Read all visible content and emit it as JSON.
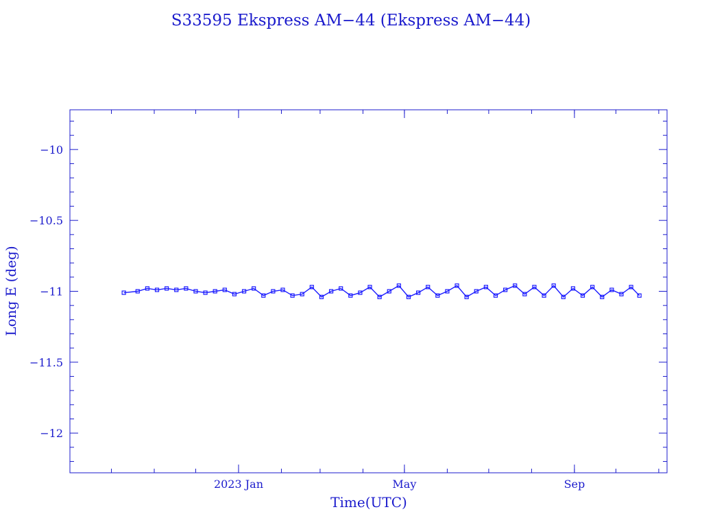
{
  "chart_data": {
    "type": "line",
    "title": "S33595 Ekspress AM−44  (Ekspress AM−44)",
    "xlabel": "Time(UTC)",
    "ylabel": "Long E (deg)",
    "xlim": [
      "2022-09-01",
      "2023-11-07"
    ],
    "ylim": [
      -12.28,
      -9.72
    ],
    "x_ticks": [
      {
        "date": "2023-01-01",
        "label": "2023 Jan"
      },
      {
        "date": "2023-05-01",
        "label": "May"
      },
      {
        "date": "2023-09-01",
        "label": "Sep"
      }
    ],
    "y_ticks": [
      {
        "value": -10,
        "label": "−10"
      },
      {
        "value": -10.5,
        "label": "−10.5"
      },
      {
        "value": -11,
        "label": "−11"
      },
      {
        "value": -11.5,
        "label": "−11.5"
      },
      {
        "value": -12,
        "label": "−12"
      }
    ],
    "grid": false,
    "series": [
      {
        "color": "#1a1aff",
        "marker": "small-square",
        "x": [
          "2022-10-10",
          "2022-10-20",
          "2022-10-27",
          "2022-11-03",
          "2022-11-10",
          "2022-11-17",
          "2022-11-24",
          "2022-12-01",
          "2022-12-08",
          "2022-12-15",
          "2022-12-22",
          "2022-12-29",
          "2023-01-05",
          "2023-01-12",
          "2023-01-19",
          "2023-01-26",
          "2023-02-02",
          "2023-02-09",
          "2023-02-16",
          "2023-02-23",
          "2023-03-02",
          "2023-03-09",
          "2023-03-16",
          "2023-03-23",
          "2023-03-30",
          "2023-04-06",
          "2023-04-13",
          "2023-04-20",
          "2023-04-27",
          "2023-05-04",
          "2023-05-11",
          "2023-05-18",
          "2023-05-25",
          "2023-06-01",
          "2023-06-08",
          "2023-06-15",
          "2023-06-22",
          "2023-06-29",
          "2023-07-06",
          "2023-07-13",
          "2023-07-20",
          "2023-07-27",
          "2023-08-03",
          "2023-08-10",
          "2023-08-17",
          "2023-08-24",
          "2023-08-31",
          "2023-09-07",
          "2023-09-14",
          "2023-09-21",
          "2023-09-28",
          "2023-10-05",
          "2023-10-12",
          "2023-10-18"
        ],
        "y": [
          -11.01,
          -11.0,
          -10.98,
          -10.99,
          -10.98,
          -10.99,
          -10.98,
          -11.0,
          -11.01,
          -11.0,
          -10.99,
          -11.02,
          -11.0,
          -10.98,
          -11.03,
          -11.0,
          -10.99,
          -11.03,
          -11.02,
          -10.97,
          -11.04,
          -11.0,
          -10.98,
          -11.03,
          -11.01,
          -10.97,
          -11.04,
          -11.0,
          -10.96,
          -11.04,
          -11.01,
          -10.97,
          -11.03,
          -11.0,
          -10.96,
          -11.04,
          -11.0,
          -10.97,
          -11.03,
          -10.99,
          -10.96,
          -11.02,
          -10.97,
          -11.03,
          -10.96,
          -11.04,
          -10.98,
          -11.03,
          -10.97,
          -11.04,
          -10.99,
          -11.02,
          -10.97,
          -11.03
        ]
      }
    ]
  }
}
